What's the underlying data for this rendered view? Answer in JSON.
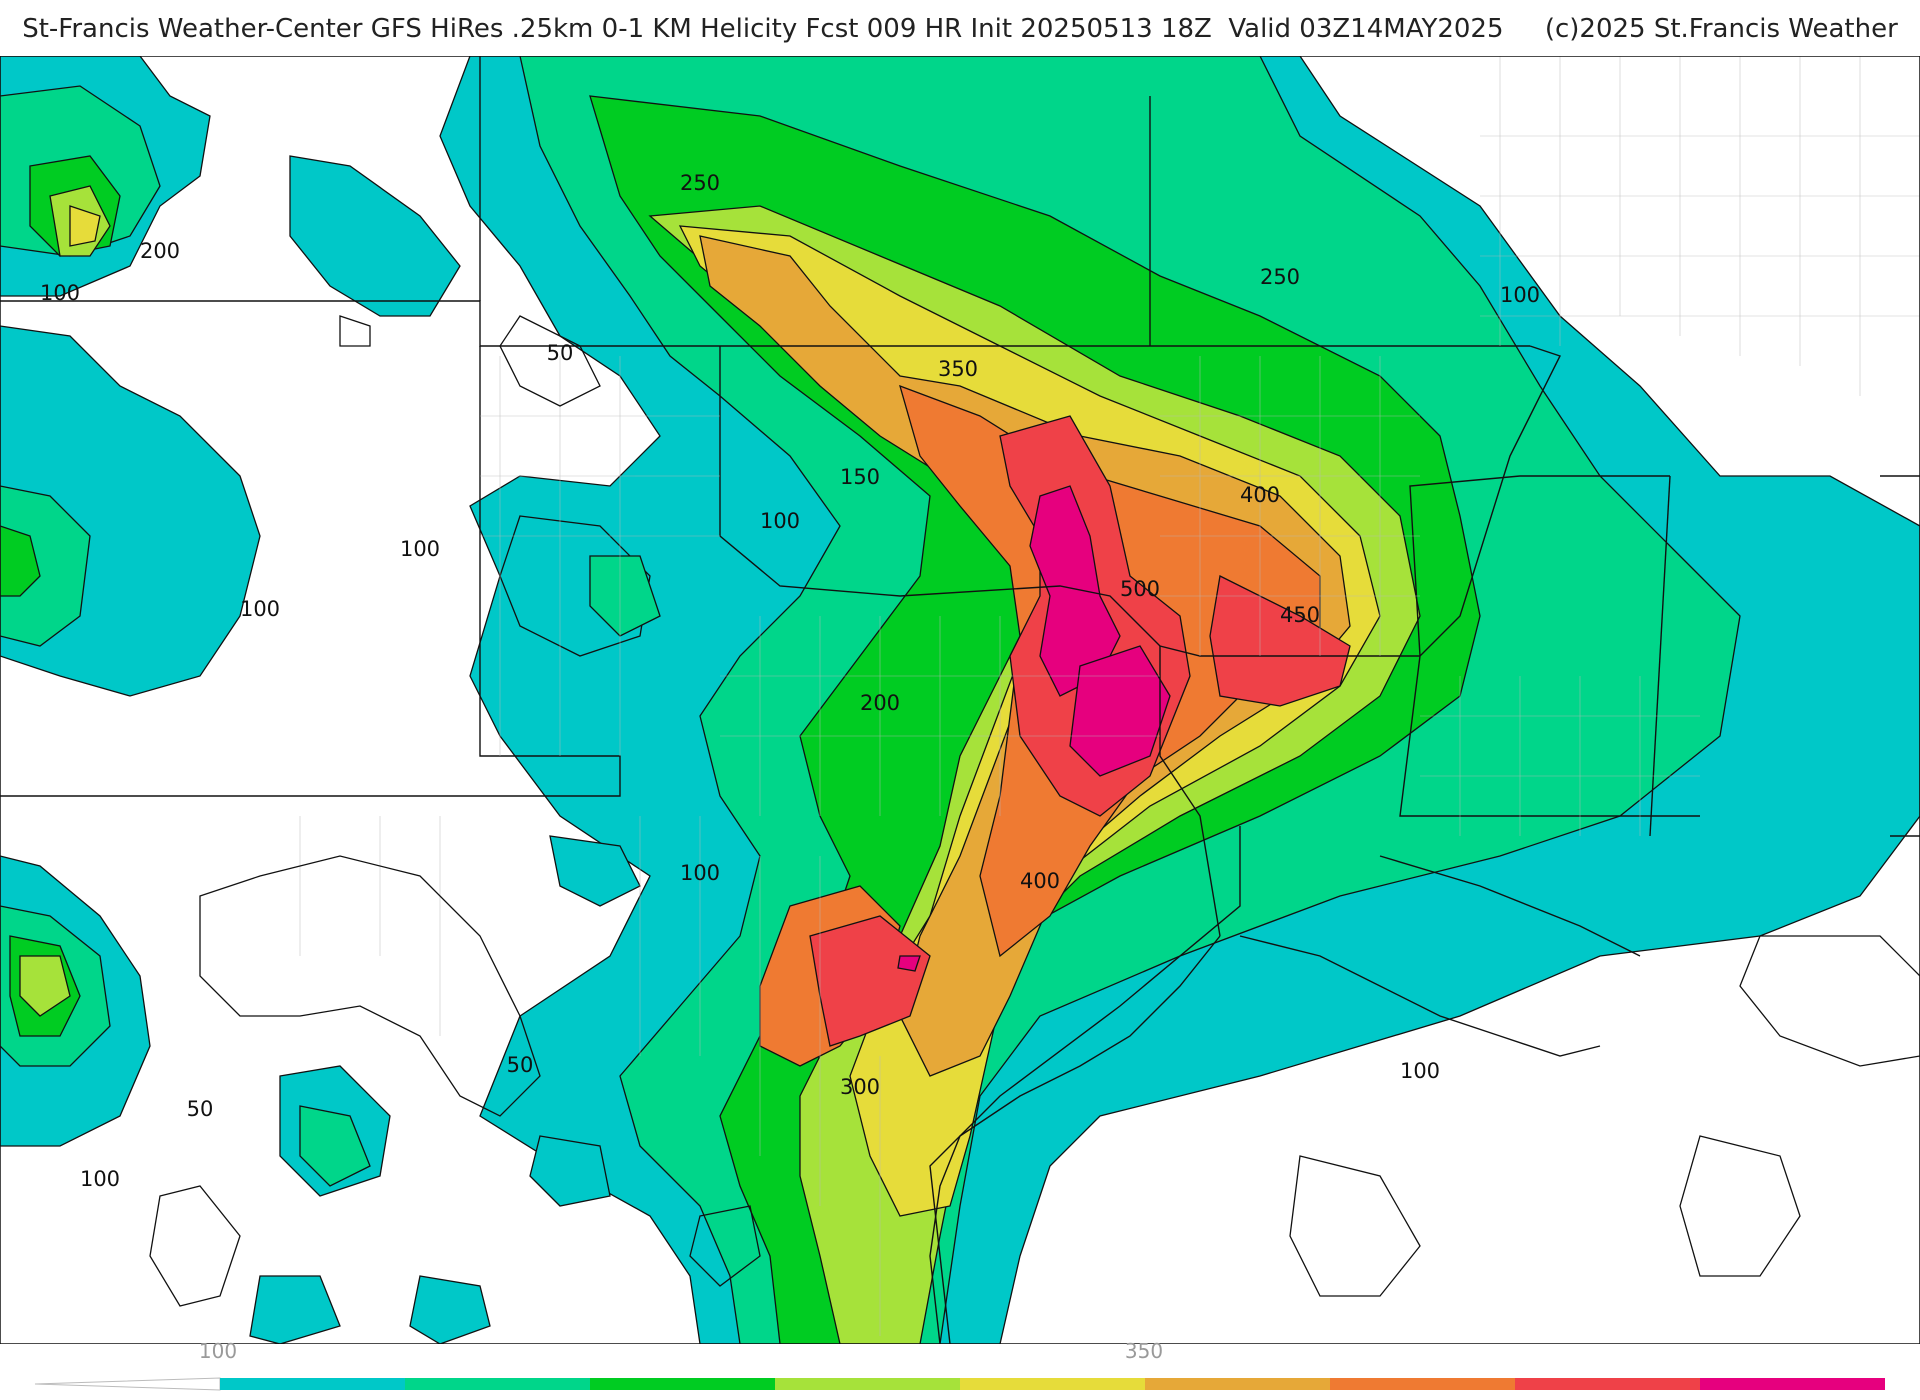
{
  "title": "St-Francis Weather-Center GFS HiRes .25km 0-1 KM Helicity Fcst 009 HR Init 20250513 18Z  Valid 03Z14MAY2025     (c)2025 St.Francis Weather",
  "contour_labels": [
    "250",
    "200",
    "100",
    "50",
    "150",
    "100",
    "100",
    "100",
    "350",
    "400",
    "500",
    "450",
    "250",
    "100",
    "200",
    "100",
    "400",
    "300",
    "100",
    "50",
    "50",
    "100"
  ],
  "color_scale": {
    "tick_labels": [
      "100",
      "350"
    ],
    "colors": [
      "#00c8c8",
      "#00d68a",
      "#00cc22",
      "#a6e23a",
      "#e6dc3a",
      "#e6a838",
      "#ef7a32",
      "#ef4148",
      "#e6007e"
    ]
  }
}
